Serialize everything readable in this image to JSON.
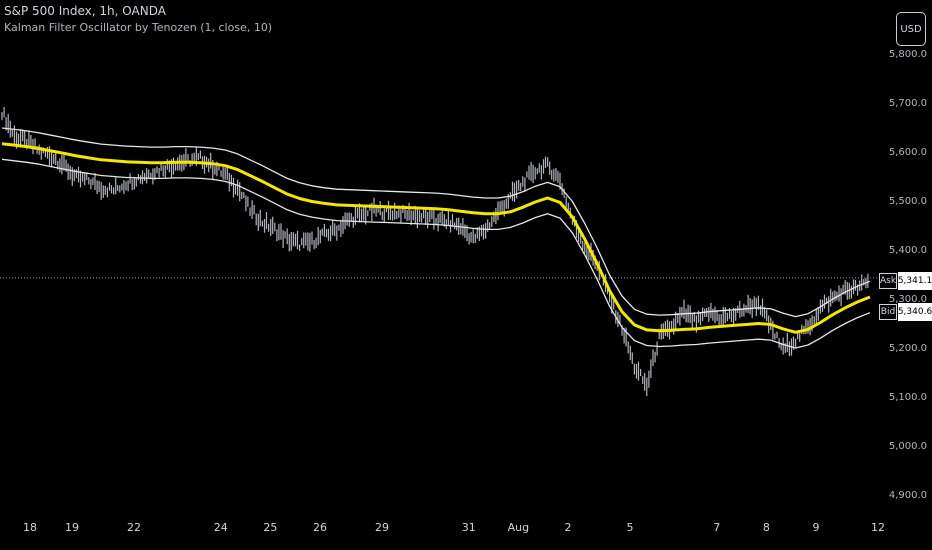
{
  "header": {
    "title": "S&P 500 Index, 1h, OANDA",
    "indicator": "Kalman Filter Oscillator by Tenozen (1, close, 10)"
  },
  "currency_button": "USD",
  "ask": {
    "label": "Ask",
    "value": "5,341.1"
  },
  "bid": {
    "label": "Bid",
    "value": "5,340.6"
  },
  "colors": {
    "background": "#000000",
    "price": "#b2b5be",
    "kalman": "#f5e600",
    "band": "#e6e6e6",
    "dotted": "#9598a1"
  },
  "chart_data": {
    "type": "line",
    "y_ticks": [
      "5,700.0",
      "5,600.0",
      "5,500.0",
      "5,400.0",
      "5,300.0",
      "5,200.0",
      "5,100.0",
      "5,000.0",
      "4,900.0"
    ],
    "y_top_partial": "5,800.0",
    "y_tick_values": [
      5700,
      5600,
      5500,
      5400,
      5300,
      5200,
      5100,
      5000,
      4900
    ],
    "ylim": [
      4880,
      5810
    ],
    "x_ticks": [
      "18",
      "19",
      "22",
      "24",
      "25",
      "26",
      "29",
      "31",
      "Aug",
      "2",
      "5",
      "7",
      "8",
      "9",
      "12"
    ],
    "x_tick_index": [
      0,
      5,
      10,
      17,
      21,
      25,
      30,
      37,
      41,
      45,
      50,
      57,
      61,
      65,
      70
    ],
    "bar_count": 71,
    "series": [
      {
        "role": "price",
        "values": [
          5680,
          5630,
          5620,
          5600,
          5590,
          5570,
          5545,
          5540,
          5525,
          5520,
          5535,
          5545,
          5555,
          5565,
          5575,
          5580,
          5585,
          5570,
          5550,
          5525,
          5480,
          5455,
          5440,
          5420,
          5410,
          5415,
          5430,
          5440,
          5460,
          5470,
          5480,
          5475,
          5475,
          5470,
          5465,
          5460,
          5455,
          5445,
          5420,
          5440,
          5475,
          5505,
          5535,
          5560,
          5570,
          5540,
          5460,
          5405,
          5370,
          5300,
          5240,
          5160,
          5120,
          5220,
          5240,
          5270,
          5250,
          5270,
          5260,
          5265,
          5280,
          5290,
          5240,
          5195,
          5215,
          5240,
          5280,
          5300,
          5315,
          5320,
          5335
        ]
      },
      {
        "role": "kalman",
        "values": [
          5615,
          5612,
          5609,
          5605,
          5600,
          5595,
          5590,
          5586,
          5582,
          5580,
          5578,
          5577,
          5576,
          5576,
          5577,
          5577,
          5576,
          5574,
          5570,
          5562,
          5550,
          5538,
          5525,
          5512,
          5503,
          5497,
          5493,
          5490,
          5489,
          5488,
          5487,
          5486,
          5485,
          5484,
          5483,
          5482,
          5480,
          5477,
          5474,
          5472,
          5472,
          5476,
          5485,
          5496,
          5504,
          5495,
          5465,
          5420,
          5370,
          5315,
          5272,
          5245,
          5235,
          5233,
          5234,
          5236,
          5237,
          5240,
          5242,
          5244,
          5246,
          5248,
          5246,
          5237,
          5230,
          5236,
          5250,
          5266,
          5280,
          5292,
          5302
        ]
      },
      {
        "role": "upper_band",
        "values": [
          5647,
          5644,
          5641,
          5637,
          5632,
          5627,
          5622,
          5618,
          5614,
          5612,
          5610,
          5609,
          5608,
          5608,
          5609,
          5609,
          5608,
          5606,
          5602,
          5594,
          5582,
          5570,
          5557,
          5544,
          5535,
          5529,
          5525,
          5522,
          5521,
          5520,
          5519,
          5518,
          5517,
          5516,
          5515,
          5514,
          5512,
          5509,
          5506,
          5504,
          5504,
          5508,
          5517,
          5528,
          5536,
          5527,
          5497,
          5452,
          5402,
          5347,
          5304,
          5277,
          5267,
          5265,
          5266,
          5268,
          5269,
          5272,
          5274,
          5276,
          5278,
          5280,
          5278,
          5269,
          5262,
          5268,
          5282,
          5298,
          5312,
          5324,
          5334
        ]
      },
      {
        "role": "lower_band",
        "values": [
          5583,
          5580,
          5577,
          5573,
          5568,
          5563,
          5558,
          5554,
          5550,
          5548,
          5546,
          5545,
          5544,
          5544,
          5545,
          5545,
          5544,
          5542,
          5538,
          5530,
          5518,
          5506,
          5493,
          5480,
          5471,
          5465,
          5461,
          5458,
          5457,
          5456,
          5455,
          5454,
          5453,
          5452,
          5451,
          5450,
          5448,
          5445,
          5442,
          5440,
          5440,
          5444,
          5453,
          5464,
          5472,
          5463,
          5433,
          5388,
          5338,
          5283,
          5240,
          5213,
          5203,
          5201,
          5202,
          5204,
          5205,
          5208,
          5210,
          5212,
          5214,
          5216,
          5214,
          5205,
          5198,
          5204,
          5218,
          5234,
          5248,
          5260,
          5270
        ]
      }
    ],
    "current_price": 5341,
    "grid": false
  }
}
